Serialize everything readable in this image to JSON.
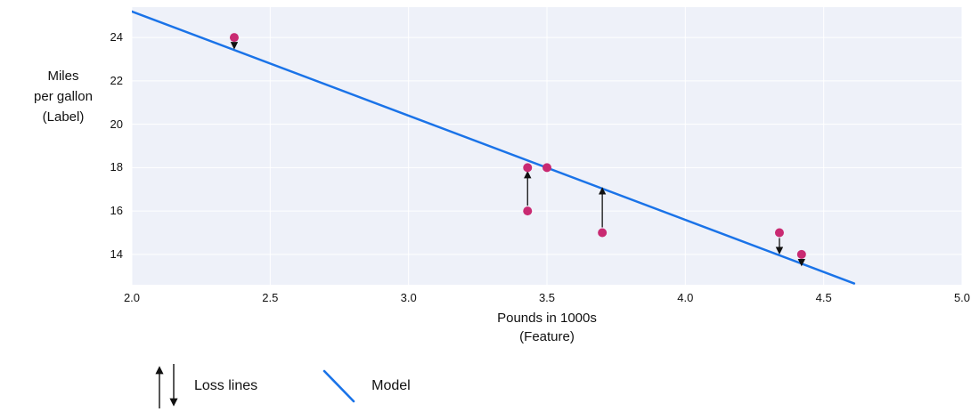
{
  "figure": {
    "legend": {
      "loss_label": "Loss lines",
      "model_label": "Model"
    }
  },
  "chart_data": {
    "type": "scatter",
    "title": "",
    "xlabel": "Pounds in 1000s",
    "xlabel_sub": "(Feature)",
    "ylabel_lines": [
      "Miles",
      "per gallon",
      "(Label)"
    ],
    "xlim": [
      2.0,
      5.0
    ],
    "ylim": [
      12.6,
      25.4
    ],
    "x_ticks": [
      "2.0",
      "2.5",
      "3.0",
      "3.5",
      "4.0",
      "4.5",
      "5.0"
    ],
    "y_ticks": [
      "14",
      "16",
      "18",
      "20",
      "22",
      "24"
    ],
    "grid": true,
    "legend_position": "bottom-left",
    "points": [
      {
        "x": 2.37,
        "y": 24
      },
      {
        "x": 3.43,
        "y": 18
      },
      {
        "x": 3.5,
        "y": 18
      },
      {
        "x": 3.43,
        "y": 16
      },
      {
        "x": 3.7,
        "y": 15
      },
      {
        "x": 4.34,
        "y": 15
      },
      {
        "x": 4.42,
        "y": 14
      }
    ],
    "model_line": {
      "x1": 2.0,
      "y1": 25.2,
      "x2": 4.61,
      "y2": 12.66
    },
    "loss_lines": [
      {
        "x": 2.37,
        "from": 24,
        "to": 23.55,
        "direction": "down"
      },
      {
        "x": 3.43,
        "from": 16,
        "to": 17.75,
        "direction": "up"
      },
      {
        "x": 3.7,
        "from": 15,
        "to": 17.0,
        "direction": "up"
      },
      {
        "x": 4.34,
        "from": 15,
        "to": 14.1,
        "direction": "down"
      },
      {
        "x": 4.42,
        "from": 14,
        "to": 13.55,
        "direction": "down"
      }
    ],
    "colors": {
      "model_line": "#1a73e8",
      "point": "#c92a72",
      "loss_arrow": "#111111",
      "plot_background": "#eef1f9",
      "gridline": "#ffffff"
    }
  }
}
